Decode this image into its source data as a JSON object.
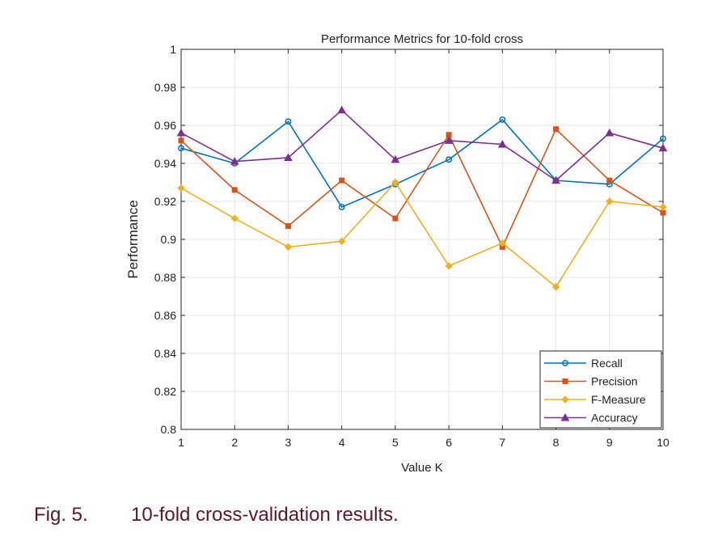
{
  "chart_data": {
    "type": "line",
    "title": "Performance Metrics for 10-fold cross",
    "xlabel": "Value K",
    "ylabel": "Performance",
    "x": [
      1,
      2,
      3,
      4,
      5,
      6,
      7,
      8,
      9,
      10
    ],
    "xlim": [
      1,
      10
    ],
    "ylim": [
      0.8,
      1.0
    ],
    "yticks": [
      "0.8",
      "0.82",
      "0.84",
      "0.86",
      "0.88",
      "0.9",
      "0.92",
      "0.94",
      "0.96",
      "0.98",
      "1"
    ],
    "xticks": [
      "1",
      "2",
      "3",
      "4",
      "5",
      "6",
      "7",
      "8",
      "9",
      "10"
    ],
    "grid": true,
    "legend_position": "bottom-right",
    "series": [
      {
        "name": "Recall",
        "color": "#0072bd",
        "marker": "circle",
        "values": [
          0.948,
          0.94,
          0.962,
          0.917,
          0.929,
          0.942,
          0.963,
          0.931,
          0.929,
          0.953
        ]
      },
      {
        "name": "Precision",
        "color": "#d95319",
        "marker": "square",
        "values": [
          0.952,
          0.926,
          0.907,
          0.931,
          0.911,
          0.955,
          0.896,
          0.958,
          0.931,
          0.914
        ]
      },
      {
        "name": "F-Measure",
        "color": "#edb120",
        "marker": "diamond",
        "values": [
          0.927,
          0.911,
          0.896,
          0.899,
          0.93,
          0.886,
          0.898,
          0.875,
          0.92,
          0.917
        ]
      },
      {
        "name": "Accuracy",
        "color": "#7e2f8e",
        "marker": "triangle",
        "values": [
          0.956,
          0.941,
          0.943,
          0.968,
          0.942,
          0.952,
          0.95,
          0.931,
          0.956,
          0.948
        ]
      }
    ]
  },
  "caption": {
    "label": "Fig. 5.",
    "text": "10-fold cross-validation results."
  }
}
